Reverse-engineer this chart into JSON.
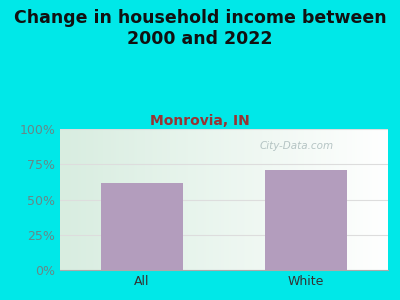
{
  "title": "Change in household income between\n2000 and 2022",
  "subtitle": "Monrovia, IN",
  "categories": [
    "All",
    "White"
  ],
  "values": [
    62,
    71
  ],
  "bar_color": "#b39dbd",
  "background_color": "#00e8e8",
  "title_fontsize": 12.5,
  "subtitle_fontsize": 10,
  "title_color": "#111111",
  "subtitle_color": "#993333",
  "tick_color": "#668888",
  "xlabel_color": "#333333",
  "ylabel_ticks": [
    0,
    25,
    50,
    75,
    100
  ],
  "ylim": [
    0,
    100
  ],
  "watermark": "City-Data.com",
  "watermark_color": "#aabbbb",
  "grid_color": "#dddddd"
}
